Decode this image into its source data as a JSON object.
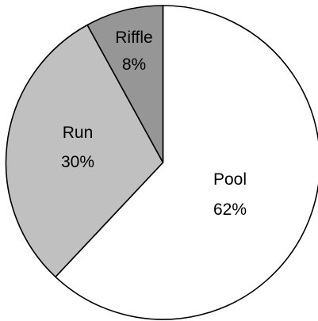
{
  "chart_data": {
    "type": "pie",
    "title": "",
    "slices": [
      {
        "label": "Pool",
        "value": 62,
        "display": "62%",
        "color": "#ffffff"
      },
      {
        "label": "Run",
        "value": 30,
        "display": "30%",
        "color": "#c0c0c0"
      },
      {
        "label": "Riffle",
        "value": 8,
        "display": "8%",
        "color": "#969696"
      }
    ],
    "start": "12 o'clock",
    "direction": "clockwise",
    "legend": "none",
    "labels": "inside-slices"
  }
}
